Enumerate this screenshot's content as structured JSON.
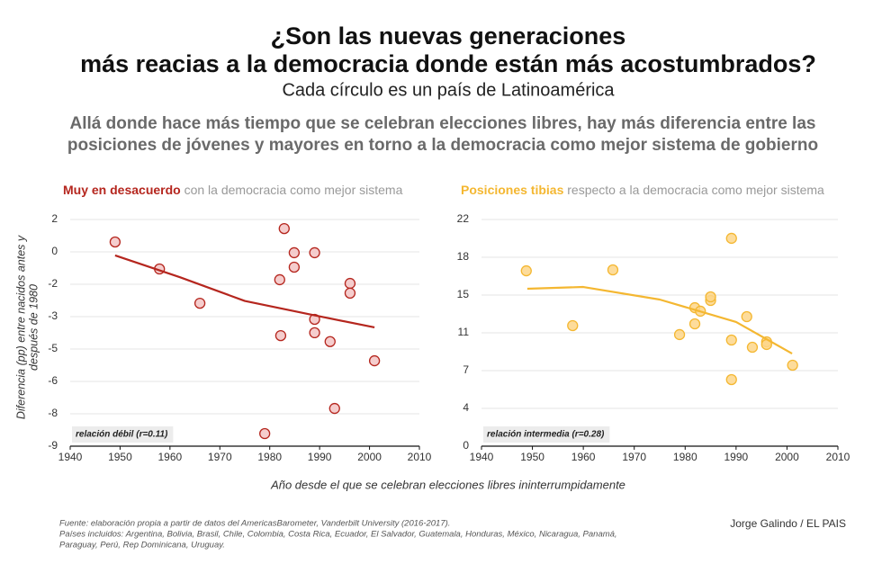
{
  "header": {
    "title": [
      "¿Son las nuevas generaciones",
      "más reacias a la democracia donde están más acostumbrados?"
    ],
    "subtitle": "Cada círculo es un país de Latinoamérica",
    "deck": [
      "Allá donde hace más tiempo que se celebran elecciones libres, hay más diferencia entre las",
      "posiciones de jóvenes y mayores en torno a la democracia como mejor sistema de gobierno"
    ]
  },
  "chart_data": [
    {
      "type": "scatter",
      "title_strong": "Muy en desacuerdo",
      "title_rest": "con la democracia como mejor sistema",
      "ylabel": [
        "Diferencia (pp) entre nacidos antes y",
        "después de 1980"
      ],
      "annotation": "relación débil (r=0.11)",
      "color": "#b5261e",
      "fill": "#f3c4c4",
      "x": [
        1949.0,
        1957.9,
        1966.0,
        1982.9,
        1984.9,
        1989.0,
        1984.9,
        1982.0,
        1996.1,
        1996.1,
        1989.0,
        1982.2,
        1989.0,
        1992.1,
        2001.0,
        1993.0,
        1979.0
      ],
      "values": [
        0.51,
        -0.8,
        -2.46,
        1.16,
        -0.01,
        -0.01,
        -0.71,
        -1.32,
        -1.5,
        -1.97,
        -3.24,
        -4.03,
        -3.89,
        -4.32,
        -5.25,
        -7.56,
        -8.78
      ],
      "trend": {
        "x": [
          1949,
          1962,
          1975,
          1988,
          2001
        ],
        "values": [
          -0.14,
          -1.2,
          -2.35,
          -3.0,
          -3.63
        ]
      },
      "xlim": [
        1940,
        2010
      ],
      "xticks": [
        1940,
        1950,
        1960,
        1970,
        1980,
        1990,
        2000,
        2010
      ],
      "ylim": [
        -9.39,
        1.6
      ],
      "yticks": [
        {
          "value": 1.6,
          "label": "2"
        },
        {
          "value": 0.03,
          "label": "0"
        },
        {
          "value": -1.54,
          "label": "-2"
        },
        {
          "value": -3.11,
          "label": "-3"
        },
        {
          "value": -4.68,
          "label": "-5"
        },
        {
          "value": -6.25,
          "label": "-6"
        },
        {
          "value": -7.82,
          "label": "-8"
        },
        {
          "value": -9.39,
          "label": "-9"
        }
      ],
      "grid": true
    },
    {
      "type": "scatter",
      "title_strong": "Posiciones tibias",
      "title_rest": "respecto a la democracia como mejor sistema",
      "annotation": "relación intermedia (r=0.28)",
      "color": "#f4b731",
      "fill": "#fdd68a",
      "x": [
        1948.8,
        1965.8,
        1957.9,
        1978.9,
        1981.9,
        1983.0,
        1981.9,
        1985.0,
        1985.0,
        1989.1,
        1989.1,
        1989.1,
        1992.1,
        1993.2,
        1996.0,
        1996.0,
        2001.1
      ],
      "values": [
        17.02,
        17.11,
        11.7,
        10.83,
        13.44,
        13.1,
        11.87,
        14.14,
        14.49,
        20.17,
        10.3,
        6.46,
        12.57,
        9.6,
        10.13,
        9.87,
        7.86
      ],
      "trend": {
        "x": [
          1949,
          1960,
          1975,
          1990,
          2001
        ],
        "values": [
          15.28,
          15.45,
          14.23,
          12.05,
          8.99
        ]
      },
      "xlim": [
        1940,
        2010
      ],
      "xticks": [
        1940,
        1950,
        1960,
        1970,
        1980,
        1990,
        2000,
        2010
      ],
      "ylim": [
        0,
        22
      ],
      "yticks": [
        0,
        {
          "value": 3.67,
          "label": "4"
        },
        {
          "value": 7.33,
          "label": "7"
        },
        11,
        {
          "value": 14.67,
          "label": "15"
        },
        {
          "value": 18.33,
          "label": "18"
        },
        22
      ],
      "grid": true
    }
  ],
  "xlabel": "Año desde el que se celebran elecciones libres ininterrumpidamente",
  "footer": {
    "source": [
      "Fuente: elaboración propia a partir de datos del AmericasBarometer, Vanderbilt University (2016-2017).",
      "Países incluidos: Argentina, Bolivia, Brasil, Chile, Colombia, Costa Rica, Ecuador, El Salvador, Guatemala, Honduras, México, Nicaragua, Panamá,",
      "Paraguay, Perú, Rep Dominicana, Uruguay."
    ],
    "credit": "Jorge Galindo / EL PAIS"
  }
}
